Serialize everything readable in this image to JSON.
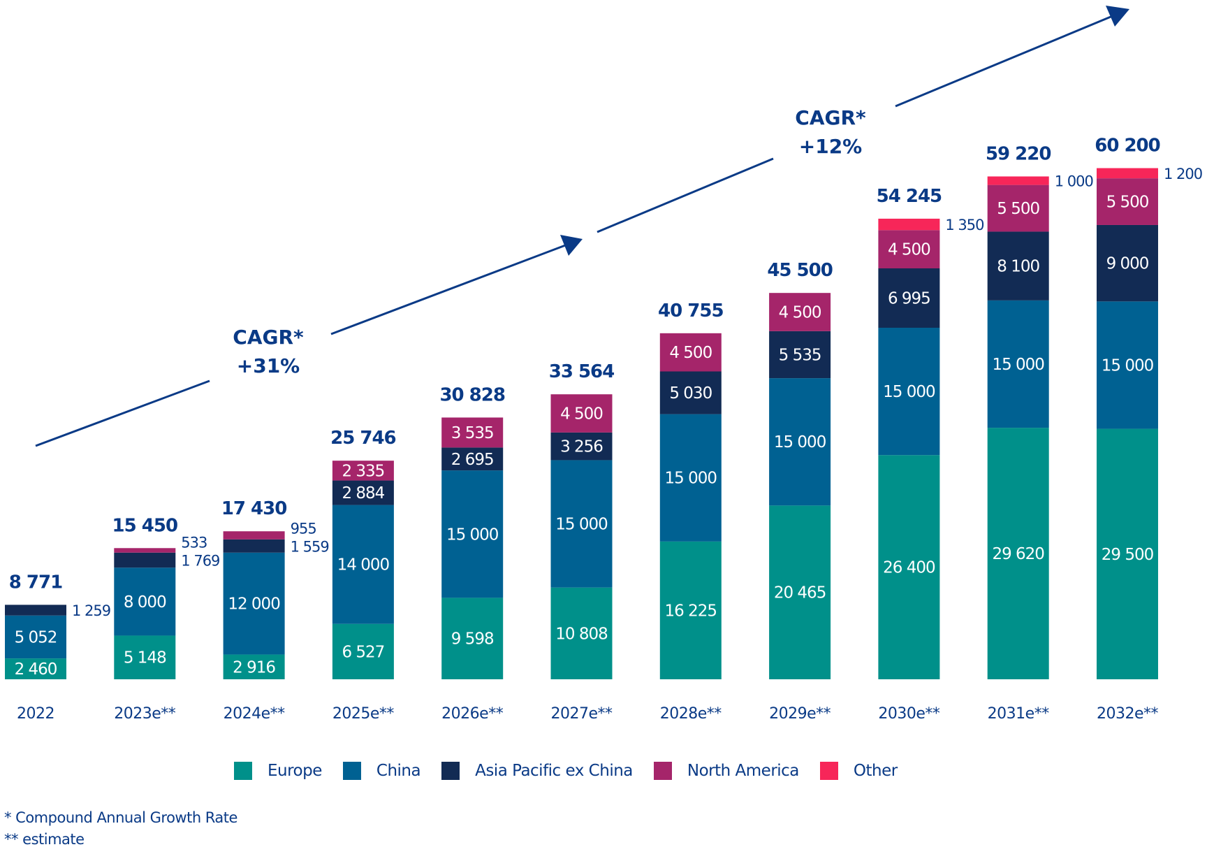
{
  "chart_data": {
    "type": "bar",
    "stacked": true,
    "title": "",
    "xlabel": "",
    "ylabel": "",
    "categories": [
      "2022",
      "2023e**",
      "2024e**",
      "2025e**",
      "2026e**",
      "2027e**",
      "2028e**",
      "2029e**",
      "2030e**",
      "2031e**",
      "2032e**"
    ],
    "series": [
      {
        "name": "Europe",
        "color": "#00908A",
        "values": [
          2460,
          5148,
          2916,
          6527,
          9598,
          10808,
          16225,
          20465,
          26400,
          29620,
          29500
        ]
      },
      {
        "name": "China",
        "color": "#006192",
        "values": [
          5052,
          8000,
          12000,
          14000,
          15000,
          15000,
          15000,
          15000,
          15000,
          15000,
          15000
        ]
      },
      {
        "name": "Asia Pacific ex China",
        "color": "#122B54",
        "values": [
          1259,
          1769,
          1559,
          2884,
          2695,
          3256,
          5030,
          5535,
          6995,
          8100,
          9000
        ]
      },
      {
        "name": "North America",
        "color": "#A5256A",
        "values": [
          null,
          533,
          955,
          2335,
          3535,
          4500,
          4500,
          4500,
          4500,
          5500,
          5500
        ]
      },
      {
        "name": "Other",
        "color": "#F72659",
        "values": [
          null,
          null,
          null,
          null,
          null,
          null,
          null,
          null,
          1350,
          1000,
          1200
        ]
      }
    ],
    "segment_labels": [
      [
        "2 460",
        "5 052",
        "1 259",
        "",
        ""
      ],
      [
        "5 148",
        "8 000",
        "1 769",
        "533",
        ""
      ],
      [
        "2 916",
        "12 000",
        "1 559",
        "955",
        ""
      ],
      [
        "6 527",
        "14 000",
        "2 884",
        "2 335",
        ""
      ],
      [
        "9 598",
        "15 000",
        "2 695",
        "3 535",
        ""
      ],
      [
        "10 808",
        "15 000",
        "3 256",
        "4 500",
        ""
      ],
      [
        "16 225",
        "15 000",
        "5 030",
        "4 500",
        ""
      ],
      [
        "20 465",
        "15 000",
        "5 535",
        "4 500",
        ""
      ],
      [
        "26 400",
        "15 000",
        "6 995",
        "4 500",
        "1 350"
      ],
      [
        "29 620",
        "15 000",
        "8 100",
        "5 500",
        "1 000"
      ],
      [
        "29 500",
        "15 000",
        "9 000",
        "5 500",
        "1 200"
      ]
    ],
    "totals": [
      8771,
      15450,
      17430,
      25746,
      30828,
      33564,
      40755,
      45500,
      54245,
      59220,
      60200
    ],
    "total_labels": [
      "8 771",
      "15 450",
      "17 430",
      "25 746",
      "30 828",
      "33 564",
      "40 755",
      "45 500",
      "54 245",
      "59 220",
      "60 200"
    ],
    "ylim": [
      0,
      60200
    ],
    "grid": false,
    "legend_position": "bottom",
    "annotations": [
      {
        "label_line1": "CAGR*",
        "label_line2": "+31%",
        "from_category": "2022",
        "to_category": "2027e**"
      },
      {
        "label_line1": "CAGR*",
        "label_line2": "+12%",
        "from_category": "2027e**",
        "to_category": "2032e**"
      }
    ]
  },
  "legend": [
    {
      "label": "Europe",
      "color": "#00908A"
    },
    {
      "label": "China",
      "color": "#006192"
    },
    {
      "label": "Asia Pacific ex China",
      "color": "#122B54"
    },
    {
      "label": "North America",
      "color": "#A5256A"
    },
    {
      "label": "Other",
      "color": "#F72659"
    }
  ],
  "footnotes": {
    "cagr": "* Compound Annual Growth Rate",
    "estimate": "** estimate"
  },
  "colors": {
    "text": "#0A3A86",
    "arrow": "#0A3A86"
  }
}
